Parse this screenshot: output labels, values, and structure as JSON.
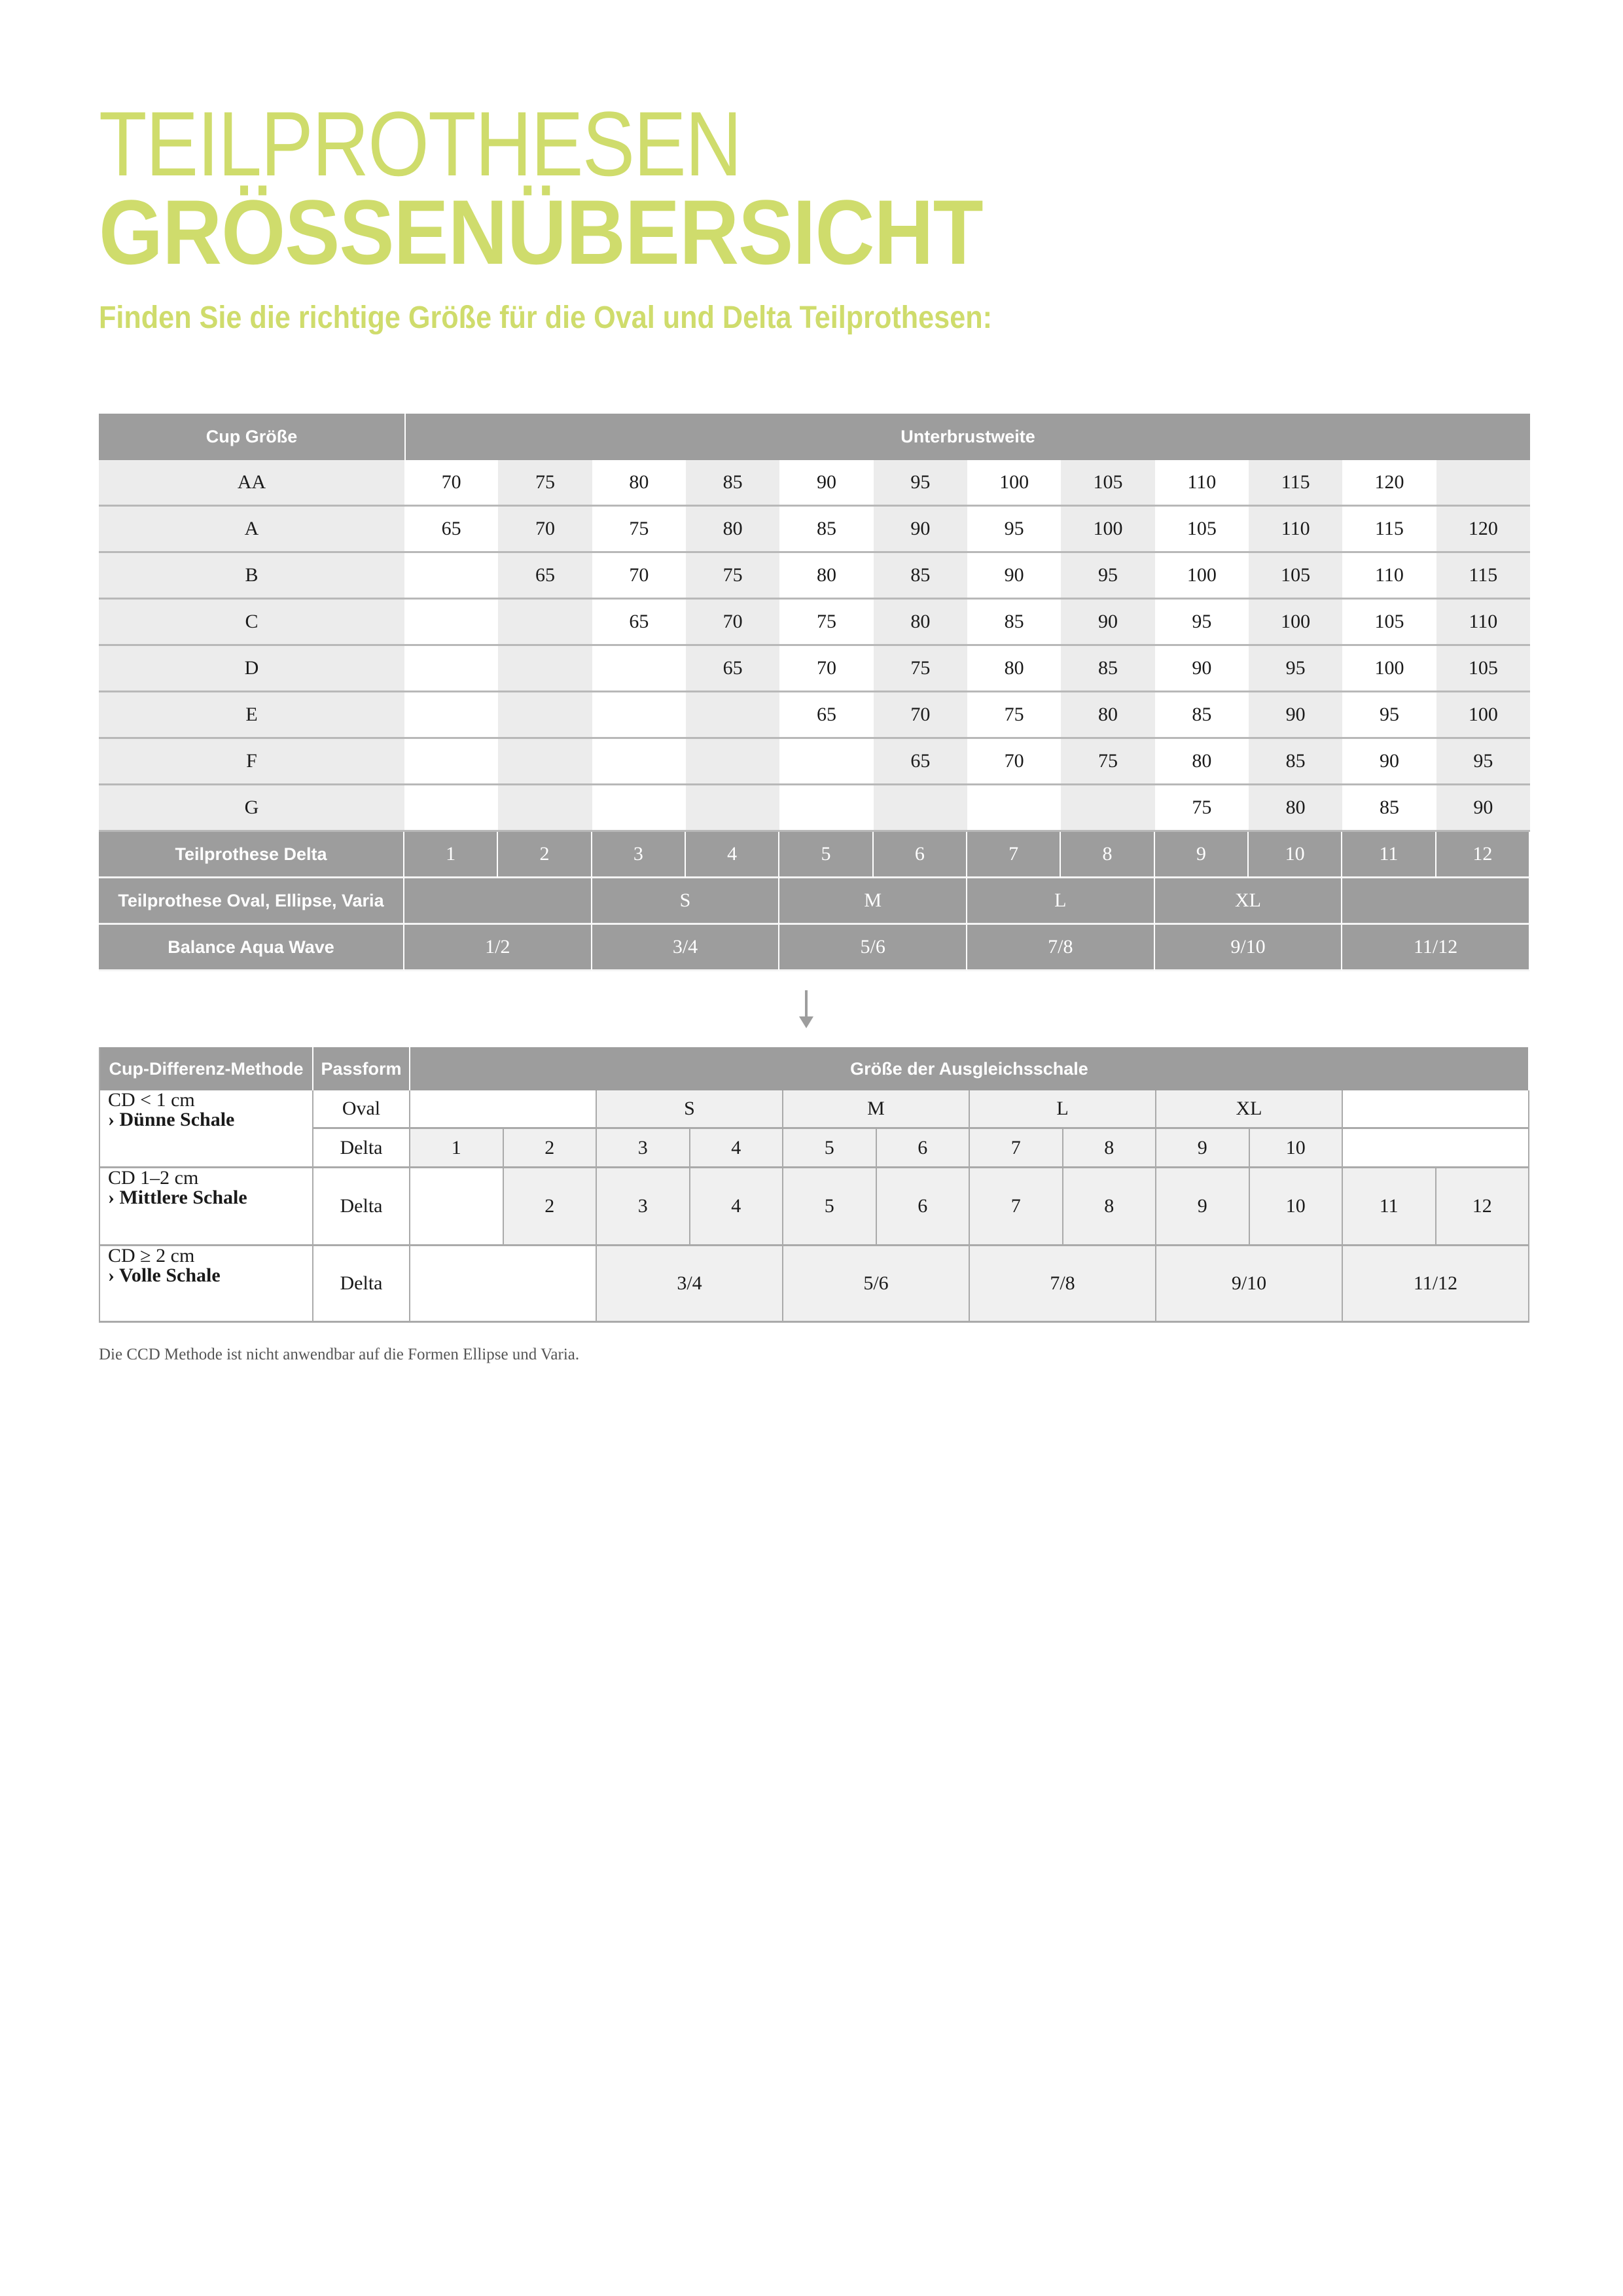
{
  "title_line1": "TEILPROTHESEN",
  "title_line2": "GRÖSSENÜBERSICHT",
  "subtitle": "Finden Sie die richtige Größe für die Oval und Delta Teilprothesen:",
  "accent_color": "#cfdc6c",
  "header_color": "#9d9d9d",
  "size_table": {
    "header_cup": "Cup Größe",
    "header_band": "Unterbrustweite",
    "rows": [
      {
        "cup": "AA",
        "values": [
          "70",
          "75",
          "80",
          "85",
          "90",
          "95",
          "100",
          "105",
          "110",
          "115",
          "120",
          ""
        ]
      },
      {
        "cup": "A",
        "values": [
          "65",
          "70",
          "75",
          "80",
          "85",
          "90",
          "95",
          "100",
          "105",
          "110",
          "115",
          "120"
        ]
      },
      {
        "cup": "B",
        "values": [
          "",
          "65",
          "70",
          "75",
          "80",
          "85",
          "90",
          "95",
          "100",
          "105",
          "110",
          "115"
        ]
      },
      {
        "cup": "C",
        "values": [
          "",
          "",
          "65",
          "70",
          "75",
          "80",
          "85",
          "90",
          "95",
          "100",
          "105",
          "110"
        ]
      },
      {
        "cup": "D",
        "values": [
          "",
          "",
          "",
          "65",
          "70",
          "75",
          "80",
          "85",
          "90",
          "95",
          "100",
          "105"
        ]
      },
      {
        "cup": "E",
        "values": [
          "",
          "",
          "",
          "",
          "65",
          "70",
          "75",
          "80",
          "85",
          "90",
          "95",
          "100"
        ]
      },
      {
        "cup": "F",
        "values": [
          "",
          "",
          "",
          "",
          "",
          "65",
          "70",
          "75",
          "80",
          "85",
          "90",
          "95"
        ]
      },
      {
        "cup": "G",
        "values": [
          "",
          "",
          "",
          "",
          "",
          "",
          "",
          "",
          "75",
          "80",
          "85",
          "90"
        ]
      }
    ],
    "delta": {
      "label": "Teilprothese Delta",
      "values": [
        "1",
        "2",
        "3",
        "4",
        "5",
        "6",
        "7",
        "8",
        "9",
        "10",
        "11",
        "12"
      ]
    },
    "oval": {
      "label": "Teilprothese Oval, Ellipse, Varia",
      "values": [
        "",
        "S",
        "M",
        "L",
        "XL",
        ""
      ]
    },
    "aqua": {
      "label": "Balance Aqua Wave",
      "values": [
        "1/2",
        "3/4",
        "5/6",
        "7/8",
        "9/10",
        "11/12"
      ]
    }
  },
  "cup_diff_table": {
    "header_method": "Cup-Differenz-Methode",
    "header_fit": "Passform",
    "header_size": "Größe der Ausgleichsschale",
    "thin": {
      "line1": "CD < 1  cm",
      "line2": "› Dünne Schale",
      "oval_label": "Oval",
      "oval_values": [
        "",
        "S",
        "M",
        "L",
        "XL",
        ""
      ],
      "delta_label": "Delta",
      "delta_values": [
        "1",
        "2",
        "3",
        "4",
        "5",
        "6",
        "7",
        "8",
        "9",
        "10",
        ""
      ]
    },
    "medium": {
      "line1": "CD 1–2  cm",
      "line2": "› Mittlere Schale",
      "delta_label": "Delta",
      "delta_values": [
        "",
        "2",
        "3",
        "4",
        "5",
        "6",
        "7",
        "8",
        "9",
        "10",
        "11",
        "12"
      ]
    },
    "full": {
      "line1": "CD ≥ 2  cm",
      "line2": "› Volle Schale",
      "delta_label": "Delta",
      "delta_values": [
        "",
        "3/4",
        "5/6",
        "7/8",
        "9/10",
        "11/12"
      ]
    }
  },
  "footnote": "Die CCD Methode ist nicht anwendbar auf die Formen Ellipse und Varia."
}
